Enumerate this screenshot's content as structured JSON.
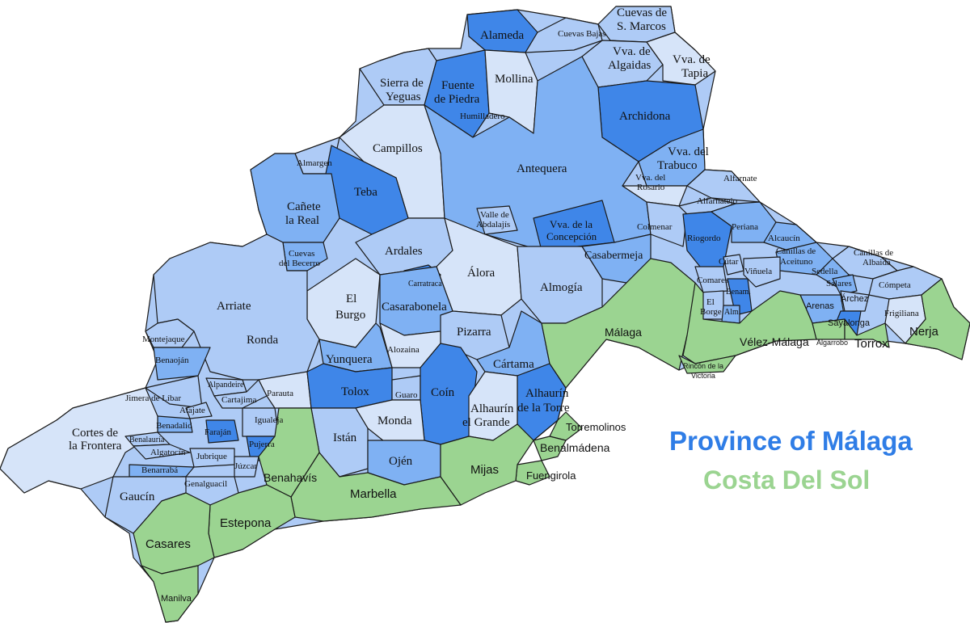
{
  "legend": {
    "title": "Province of Málaga",
    "subtitle": "Costa Del Sol",
    "title_color": "#2f7de6",
    "subtitle_color": "#9bd491"
  },
  "colors": {
    "dark": "#3f86e8",
    "mid": "#7fb1f3",
    "light": "#aecbf6",
    "pale": "#d6e4f9",
    "coast": "#9bd491",
    "border": "#1a1a1a"
  },
  "labels": {
    "alameda": "Alameda",
    "cuevas_bajas": "Cuevas Bajas",
    "cuevas_smarcos_1": "Cuevas de",
    "cuevas_smarcos_2": "S. Marcos",
    "algaidas_1": "Vva. de",
    "algaidas_2": "Algaidas",
    "tapia_1": "Vva. de",
    "tapia_2": "Tapia",
    "sierra_1": "Sierra de",
    "sierra_2": "Yeguas",
    "fuente_1": "Fuente",
    "fuente_2": "de Piedra",
    "mollina": "Mollina",
    "humilladero": "Humilladero",
    "archidona": "Archidona",
    "campillos": "Campillos",
    "antequera": "Antequera",
    "trabuco_1": "Vva. del",
    "trabuco_2": "Trabuco",
    "almargen": "Almargen",
    "teba": "Teba",
    "rosario_1": "Vva. del",
    "rosario_2": "Rosario",
    "alfarnate": "Alfarnate",
    "alfarnatejo": "Alfarnatejo",
    "canete_1": "Cañete",
    "canete_2": "la Real",
    "valle_1": "Valle de",
    "valle_2": "Abdalajís",
    "concepcion_1": "Vva. de la",
    "concepcion_2": "Concepción",
    "colmenar": "Colmenar",
    "riogordo": "Riogordo",
    "periana": "Periana",
    "alcaucin": "Alcaucín",
    "canillas_aceituno_1": "Canillas de",
    "canillas_aceituno_2": "Aceituno",
    "canillas_albaida_1": "Canillas de",
    "canillas_albaida_2": "Albaida",
    "cuevas_becerro_1": "Cuevas",
    "cuevas_becerro_2": "del Becerro",
    "ardales": "Ardales",
    "alora": "Álora",
    "casabermeja": "Casabermeja",
    "cutar": "Cútar",
    "vinuela": "Viñuela",
    "sedella": "Sedella",
    "salares": "Salares",
    "competa": "Cómpeta",
    "comares": "Comares",
    "carratraca": "Carratraca",
    "almogia": "Almogía",
    "arriate": "Arriate",
    "el_burgo_1": "El",
    "el_burgo_2": "Burgo",
    "casarabonela": "Casarabonela",
    "el_borge_1": "El",
    "el_borge_2": "Borge",
    "benamargosa": "Benam.",
    "almachar": "Alm.",
    "arenas": "Arenas",
    "archez": "Árchez",
    "sayalonga": "Sayalonga",
    "frigiliana": "Frigiliana",
    "nerja": "Nerja",
    "ronda": "Ronda",
    "montejaque": "Montejaque",
    "benaojan": "Benaoján",
    "pizarra": "Pizarra",
    "malaga": "Málaga",
    "velez": "Vélez-Málaga",
    "algarrobo": "Algarrobo",
    "torrox": "Torrox",
    "alozaina": "Alozaina",
    "yunquera": "Yunquera",
    "cartama": "Cártama",
    "rincon_1": "Rincón de la",
    "rincon_2": "Victoria",
    "alpandeire": "Alpandeire",
    "parauta": "Parauta",
    "tolox": "Tolox",
    "guaro": "Guaro",
    "coin": "Coín",
    "alhaurin_torre_1": "Alhaurín",
    "alhaurin_torre_2": "de la Torre",
    "jimera": "Jimera de Líbar",
    "cartajima": "Cartajima",
    "atajate": "Atajate",
    "benadalid": "Benadalid",
    "faraján": "Faraján",
    "igualeja": "Igualeja",
    "monda": "Monda",
    "alhaurin_grande_1": "Alhaurín",
    "alhaurin_grande_2": "el Grande",
    "torremolinos": "Torremolinos",
    "cortes_1": "Cortes de",
    "cortes_2": "la Frontera",
    "benalauria": "Benalauría",
    "pujerra": "Pujerra",
    "istan": "Istán",
    "benalmadena": "Benalmádena",
    "algatocin": "Algatocín",
    "jubrique": "Jubrique",
    "benarraba": "Benarrabá",
    "juzcar": "Júzcar",
    "ojen": "Ojén",
    "mijas": "Mijas",
    "benahavis": "Benahavís",
    "genalguacil": "Genalguacil",
    "fuengirola": "Fuengirola",
    "marbella": "Marbella",
    "gaucin": "Gaucín",
    "estepona": "Estepona",
    "casares": "Casares",
    "manilva": "Manilva"
  }
}
